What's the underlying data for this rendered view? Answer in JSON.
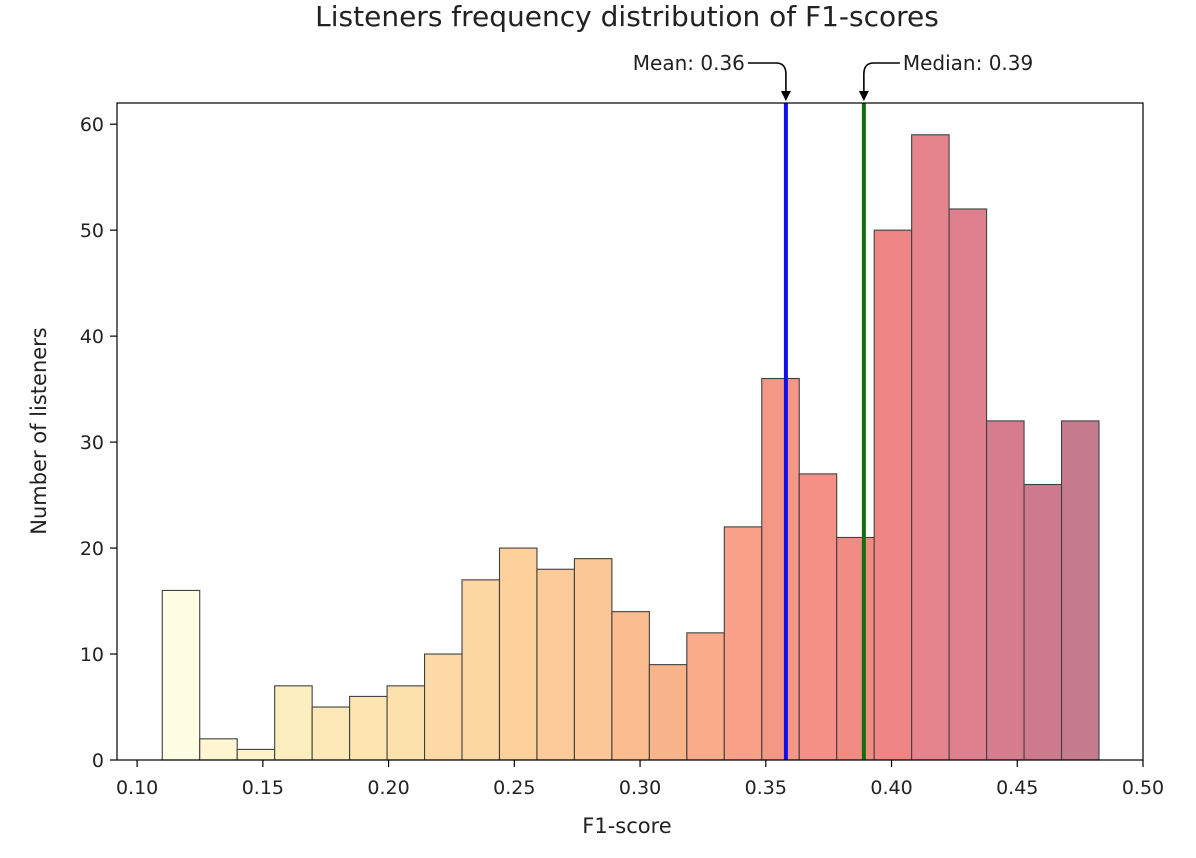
{
  "chart_data": {
    "type": "bar",
    "title": "Listeners frequency distribution of F1-scores",
    "xlabel": "F1-score",
    "ylabel": "Number of listeners",
    "xlim": [
      0.092,
      0.5
    ],
    "ylim": [
      0,
      62
    ],
    "xticks": [
      "0.10",
      "0.15",
      "0.20",
      "0.25",
      "0.30",
      "0.35",
      "0.40",
      "0.45",
      "0.50"
    ],
    "xtick_values": [
      0.1,
      0.15,
      0.2,
      0.25,
      0.3,
      0.35,
      0.4,
      0.45,
      0.5
    ],
    "yticks": [
      "0",
      "10",
      "20",
      "30",
      "40",
      "50",
      "60"
    ],
    "ytick_values": [
      0,
      10,
      20,
      30,
      40,
      50,
      60
    ],
    "grid": false,
    "bin_start": 0.11,
    "bin_width": 0.0149,
    "values": [
      16,
      2,
      1,
      7,
      5,
      6,
      7,
      10,
      17,
      20,
      18,
      19,
      14,
      9,
      12,
      22,
      36,
      27,
      21,
      50,
      59,
      52,
      32,
      26,
      32
    ],
    "colors": [
      "#fffde4",
      "#fff5d0",
      "#fff1c8",
      "#fdeec0",
      "#fde9b8",
      "#fde5b2",
      "#fde1ad",
      "#fddaa5",
      "#fdd7a2",
      "#fdd09c",
      "#fccb99",
      "#fcc796",
      "#fbbc90",
      "#fab48c",
      "#f9ab8a",
      "#f8a088",
      "#f59786",
      "#f49085",
      "#f18c83",
      "#ef8685",
      "#e6848e",
      "#df808f",
      "#d67c8f",
      "#cd7a8d",
      "#c57a8e"
    ],
    "reference_lines": [
      {
        "label": "Mean: 0.36",
        "value": 0.358,
        "color": "#1010ee"
      },
      {
        "label": "Median: 0.39",
        "value": 0.389,
        "color": "#107010"
      }
    ]
  }
}
